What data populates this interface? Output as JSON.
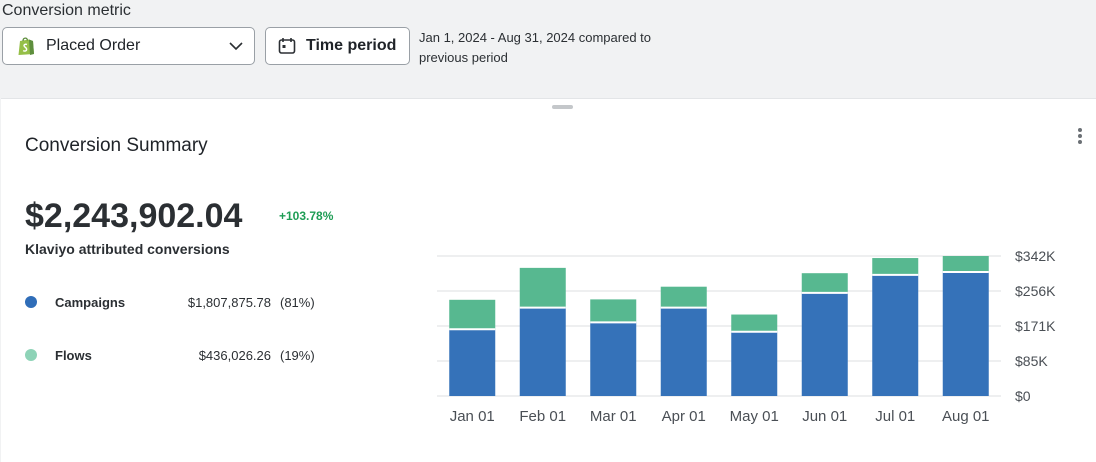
{
  "filter": {
    "label": "Conversion metric",
    "metric_value": "Placed Order",
    "time_button": "Time period",
    "date_range": "Jan 1, 2024 - Aug 31, 2024 compared to previous period"
  },
  "card": {
    "title": "Conversion Summary",
    "total": "$2,243,902.04",
    "change": "+103.78%",
    "subtitle": "Klaviyo attributed conversions",
    "legend": [
      {
        "name": "Campaigns",
        "amount": "$1,807,875.78",
        "pct": "(81%)",
        "color": "#2f6db8"
      },
      {
        "name": "Flows",
        "amount": "$436,026.26",
        "pct": "(19%)",
        "color": "#8ed3b7"
      }
    ]
  },
  "chart_data": {
    "type": "bar",
    "stacked": true,
    "categories": [
      "Jan 01",
      "Feb 01",
      "Mar 01",
      "Apr 01",
      "May 01",
      "Jun 01",
      "Jul 01",
      "Aug 01"
    ],
    "series": [
      {
        "name": "Campaigns",
        "color": "#3572b9",
        "values": [
          163000,
          216000,
          180000,
          216000,
          157000,
          252000,
          296000,
          303000
        ]
      },
      {
        "name": "Flows",
        "color": "#57b890",
        "values": [
          72000,
          97000,
          56000,
          51000,
          42000,
          48000,
          41000,
          39000
        ]
      }
    ],
    "yticks": [
      "$0",
      "$85K",
      "$171K",
      "$256K",
      "$342K"
    ],
    "ylim": [
      0,
      342000
    ],
    "grid": true,
    "y_axis_position": "right"
  }
}
